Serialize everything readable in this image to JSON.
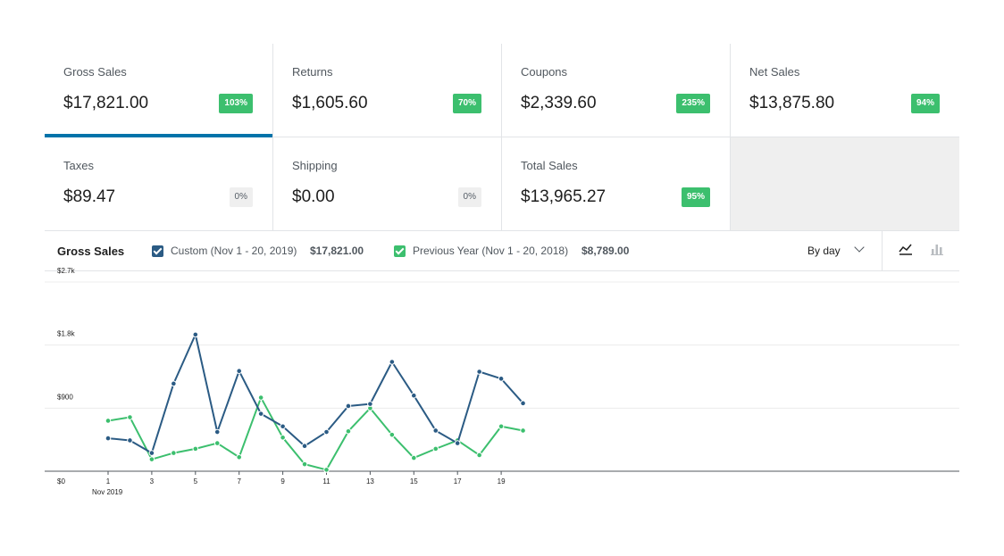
{
  "stats": [
    {
      "label": "Gross Sales",
      "value": "$17,821.00",
      "delta": "103%",
      "trend": "up",
      "selected": true
    },
    {
      "label": "Returns",
      "value": "$1,605.60",
      "delta": "70%",
      "trend": "up",
      "selected": false
    },
    {
      "label": "Coupons",
      "value": "$2,339.60",
      "delta": "235%",
      "trend": "up",
      "selected": false
    },
    {
      "label": "Net Sales",
      "value": "$13,875.80",
      "delta": "94%",
      "trend": "up",
      "selected": false
    },
    {
      "label": "Taxes",
      "value": "$89.47",
      "delta": "0%",
      "trend": "zero",
      "selected": false
    },
    {
      "label": "Shipping",
      "value": "$0.00",
      "delta": "0%",
      "trend": "zero",
      "selected": false
    },
    {
      "label": "Total Sales",
      "value": "$13,965.27",
      "delta": "95%",
      "trend": "up",
      "selected": false
    }
  ],
  "chart_header": {
    "title": "Gross Sales",
    "legend": [
      {
        "label": "Custom (Nov 1 - 20, 2019)",
        "total": "$17,821.00",
        "color": "#2b5b84",
        "checked": true
      },
      {
        "label": "Previous Year (Nov 1 - 20, 2018)",
        "total": "$8,789.00",
        "color": "#3cbf6e",
        "checked": true
      }
    ],
    "interval_label": "By day",
    "icons": {
      "line": "line-chart-icon",
      "bar": "bar-chart-icon"
    }
  },
  "chart_data": {
    "type": "line",
    "x": [
      1,
      2,
      3,
      4,
      5,
      6,
      7,
      8,
      9,
      10,
      11,
      12,
      13,
      14,
      15,
      16,
      17,
      18,
      19,
      20
    ],
    "x_ticks": [
      "1",
      "3",
      "5",
      "7",
      "9",
      "11",
      "13",
      "15",
      "17",
      "19"
    ],
    "x_sublabel": "Nov 2019",
    "y_ticks": [
      "$0",
      "$900",
      "$1.8k",
      "$2.7k"
    ],
    "ylim": [
      0,
      2700
    ],
    "grid": true,
    "series": [
      {
        "name": "Custom (Nov 1 - 20, 2019)",
        "color": "#2b5b84",
        "values": [
          470,
          440,
          260,
          1250,
          1950,
          560,
          1430,
          820,
          640,
          360,
          560,
          930,
          960,
          1560,
          1080,
          580,
          400,
          1420,
          1320,
          970
        ]
      },
      {
        "name": "Previous Year (Nov 1 - 20, 2018)",
        "color": "#3cbf6e",
        "values": [
          720,
          770,
          170,
          260,
          320,
          400,
          200,
          1050,
          480,
          100,
          20,
          570,
          900,
          520,
          190,
          320,
          440,
          230,
          640,
          580
        ]
      }
    ]
  }
}
